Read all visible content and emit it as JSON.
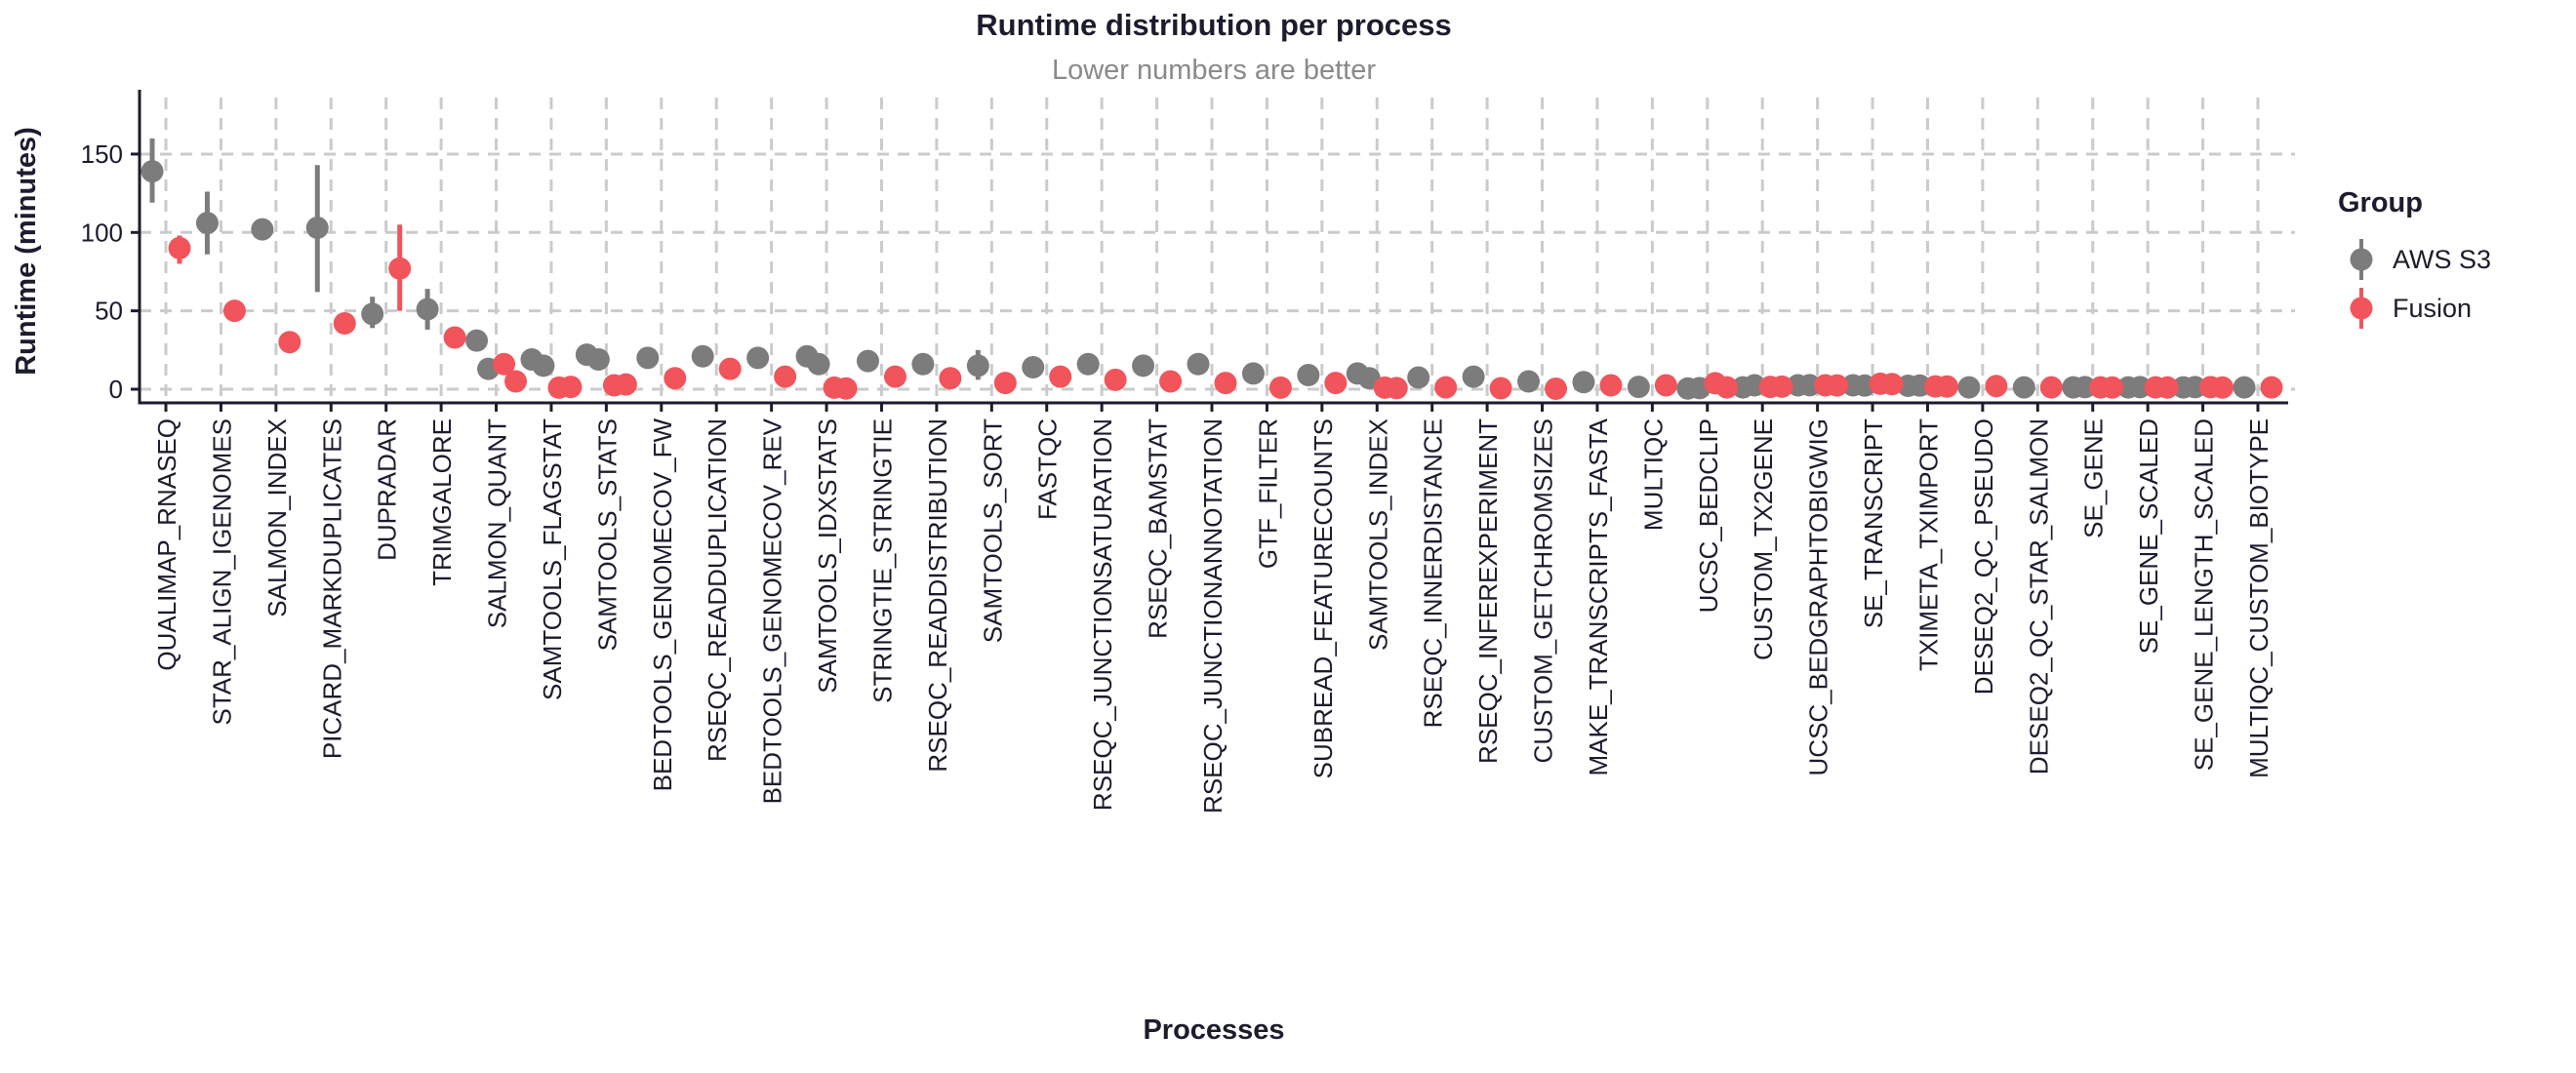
{
  "chart": {
    "title": "Runtime distribution per process",
    "subtitle": "Lower numbers are better",
    "xlabel": "Processes",
    "ylabel": "Runtime (minutes)",
    "legend": {
      "title": "Group",
      "entries": [
        {
          "label": "AWS S3",
          "color": "#7C7C7C"
        },
        {
          "label": "Fusion",
          "color": "#F2545B"
        }
      ]
    }
  },
  "chart_data": {
    "type": "scatter",
    "title": "Runtime distribution per process",
    "subtitle": "Lower numbers are better",
    "xlabel": "Processes",
    "ylabel": "Runtime (minutes)",
    "ylim": [
      0,
      165
    ],
    "yticks": [
      0,
      50,
      100,
      150
    ],
    "grid": "dashed",
    "gridline_color": "#CBCBCB",
    "axis_color": "#1C1C2E",
    "legend_position": "right",
    "point_style": "pointrange-with-jitter",
    "categories": [
      "QUALIMAP_RNASEQ",
      "STAR_ALIGN_IGENOMES",
      "SALMON_INDEX",
      "PICARD_MARKDUPLICATES",
      "DUPRADAR",
      "TRIMGALORE",
      "SALMON_QUANT",
      "SAMTOOLS_FLAGSTAT",
      "SAMTOOLS_STATS",
      "BEDTOOLS_GENOMECOV_FW",
      "RSEQC_READDUPLICATION",
      "BEDTOOLS_GENOMECOV_REV",
      "SAMTOOLS_IDXSTATS",
      "STRINGTIE_STRINGTIE",
      "RSEQC_READDISTRIBUTION",
      "SAMTOOLS_SORT",
      "FASTQC",
      "RSEQC_JUNCTIONSATURATION",
      "RSEQC_BAMSTAT",
      "RSEQC_JUNCTIONANNOTATION",
      "GTF_FILTER",
      "SUBREAD_FEATURECOUNTS",
      "SAMTOOLS_INDEX",
      "RSEQC_INNERDISTANCE",
      "RSEQC_INFEREXPERIMENT",
      "CUSTOM_GETCHROMSIZES",
      "MAKE_TRANSCRIPTS_FASTA",
      "MULTIQC",
      "UCSC_BEDCLIP",
      "CUSTOM_TX2GENE",
      "UCSC_BEDGRAPHTOBIGWIG",
      "SE_TRANSCRIPT",
      "TXIMETA_TXIMPORT",
      "DESEQ2_QC_PSEUDO",
      "DESEQ2_QC_STAR_SALMON",
      "SE_GENE",
      "SE_GENE_SCALED",
      "SE_GENE_LENGTH_SCALED",
      "MULTIQC_CUSTOM_BIOTYPE"
    ],
    "series": [
      {
        "name": "AWS S3",
        "color": "#7C7C7C",
        "points": [
          {
            "values": [
              139
            ],
            "range": [
              119,
              160
            ]
          },
          {
            "values": [
              106
            ],
            "range": [
              86,
              126
            ]
          },
          {
            "values": [
              102
            ]
          },
          {
            "values": [
              103
            ],
            "range": [
              62,
              143
            ]
          },
          {
            "values": [
              48
            ],
            "range": [
              39,
              59
            ]
          },
          {
            "values": [
              51
            ],
            "range": [
              38,
              64
            ]
          },
          {
            "values": [
              31,
              13
            ]
          },
          {
            "values": [
              19,
              15
            ]
          },
          {
            "values": [
              22,
              19
            ]
          },
          {
            "values": [
              20
            ]
          },
          {
            "values": [
              21
            ]
          },
          {
            "values": [
              20
            ]
          },
          {
            "values": [
              21,
              16
            ]
          },
          {
            "values": [
              18
            ]
          },
          {
            "values": [
              16
            ]
          },
          {
            "values": [
              15
            ],
            "range": [
              6,
              25
            ]
          },
          {
            "values": [
              14
            ]
          },
          {
            "values": [
              16
            ]
          },
          {
            "values": [
              15
            ]
          },
          {
            "values": [
              16
            ]
          },
          {
            "values": [
              10
            ]
          },
          {
            "values": [
              9
            ]
          },
          {
            "values": [
              10,
              7
            ]
          },
          {
            "values": [
              7.5
            ]
          },
          {
            "values": [
              8
            ]
          },
          {
            "values": [
              5
            ]
          },
          {
            "values": [
              4.5
            ]
          },
          {
            "values": [
              1.5
            ]
          },
          {
            "values": [
              0.5,
              0.7
            ]
          },
          {
            "values": [
              1.2,
              2.5
            ]
          },
          {
            "values": [
              2.5,
              2.6
            ]
          },
          {
            "values": [
              2.5,
              2.3
            ]
          },
          {
            "values": [
              2.2,
              2.3
            ]
          },
          {
            "values": [
              1.2
            ]
          },
          {
            "values": [
              1.2
            ]
          },
          {
            "values": [
              1.2,
              1.3
            ]
          },
          {
            "values": [
              1.2,
              1.3
            ]
          },
          {
            "values": [
              1.2,
              1.3
            ]
          },
          {
            "values": [
              1.2
            ]
          }
        ]
      },
      {
        "name": "Fusion",
        "color": "#F2545B",
        "points": [
          {
            "values": [
              90
            ],
            "range": [
              80,
              98
            ]
          },
          {
            "values": [
              50
            ],
            "range": [
              46,
              53
            ]
          },
          {
            "values": [
              30
            ]
          },
          {
            "values": [
              42
            ]
          },
          {
            "values": [
              77
            ],
            "range": [
              50,
              105
            ]
          },
          {
            "values": [
              33
            ]
          },
          {
            "values": [
              16,
              5
            ]
          },
          {
            "values": [
              1,
              1.5
            ]
          },
          {
            "values": [
              2.5,
              3
            ]
          },
          {
            "values": [
              7
            ]
          },
          {
            "values": [
              13
            ]
          },
          {
            "values": [
              8
            ]
          },
          {
            "values": [
              1,
              0.5
            ]
          },
          {
            "values": [
              8
            ]
          },
          {
            "values": [
              7
            ]
          },
          {
            "values": [
              4
            ]
          },
          {
            "values": [
              8
            ]
          },
          {
            "values": [
              6
            ]
          },
          {
            "values": [
              5
            ]
          },
          {
            "values": [
              4
            ]
          },
          {
            "values": [
              1
            ]
          },
          {
            "values": [
              4
            ]
          },
          {
            "values": [
              1,
              0.7
            ]
          },
          {
            "values": [
              1.2
            ]
          },
          {
            "values": [
              0.6
            ]
          },
          {
            "values": [
              0.3
            ]
          },
          {
            "values": [
              2.5
            ]
          },
          {
            "values": [
              2.5
            ]
          },
          {
            "values": [
              3.8,
              1.2
            ]
          },
          {
            "values": [
              1.5,
              1.6
            ]
          },
          {
            "values": [
              2.5,
              2.4
            ]
          },
          {
            "values": [
              3.5,
              3.3
            ]
          },
          {
            "values": [
              1.8,
              1.7
            ]
          },
          {
            "values": [
              2
            ]
          },
          {
            "values": [
              1.2
            ]
          },
          {
            "values": [
              1.2,
              1.1
            ]
          },
          {
            "values": [
              1.2,
              1.1
            ]
          },
          {
            "values": [
              1.3,
              1.1
            ]
          },
          {
            "values": [
              1.2
            ]
          }
        ]
      }
    ]
  }
}
